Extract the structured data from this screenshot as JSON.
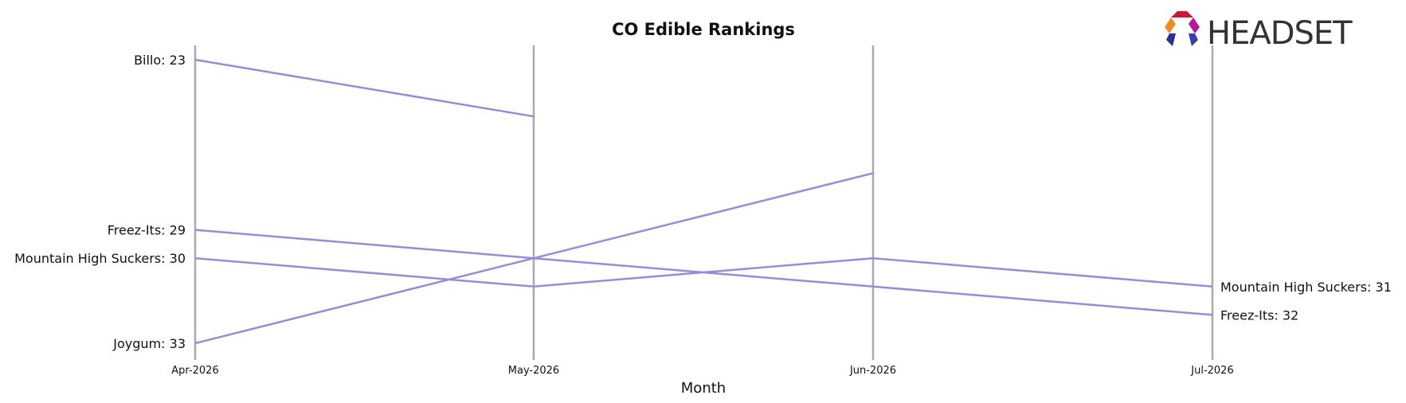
{
  "chart_data": {
    "type": "line",
    "title": "CO Edible Rankings",
    "xlabel": "Month",
    "ylabel": "",
    "categories": [
      "Apr-2026",
      "May-2026",
      "Jun-2026",
      "Jul-2026"
    ],
    "y_inverted": true,
    "ylim": [
      22.5,
      33.5
    ],
    "grid": false,
    "series_color": "#9b8ad8",
    "series": [
      {
        "name": "Billo",
        "values": [
          23,
          25,
          null,
          null
        ]
      },
      {
        "name": "Freez-Its",
        "values": [
          29,
          30,
          31,
          32
        ]
      },
      {
        "name": "Mountain High Suckers",
        "values": [
          30,
          31,
          30,
          31
        ]
      },
      {
        "name": "Joygum",
        "values": [
          33,
          30,
          27,
          null
        ]
      }
    ]
  },
  "brand": {
    "logo_text": "HEADSET",
    "logo_colors": [
      "#e8342a",
      "#b5179e",
      "#2b2f8f",
      "#f39c12"
    ]
  }
}
